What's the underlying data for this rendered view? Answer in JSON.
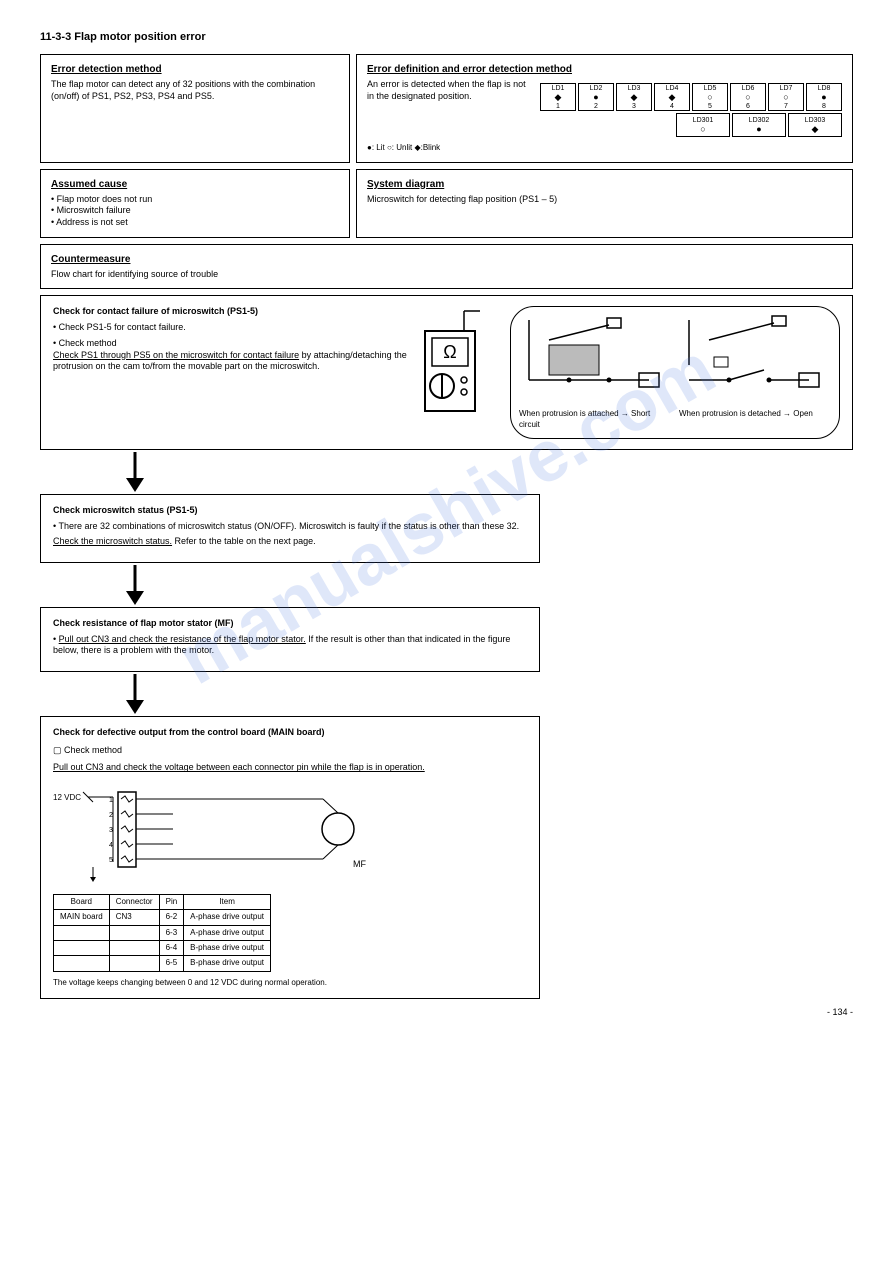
{
  "title": "11-3-3 Flap motor position error",
  "box1": {
    "heading": "Error detection method",
    "text": "The flap motor can detect any of 32 positions with the combination (on/off) of PS1, PS2, PS3, PS4 and PS5."
  },
  "box2": {
    "heading": "Error definition and error detection method",
    "text": "An error is detected when the flap is not in the designated position.",
    "led": {
      "cols": [
        "LD1",
        "LD2",
        "LD3",
        "LD4",
        "LD5",
        "LD6",
        "LD7",
        "LD8"
      ],
      "row1": [
        {
          "sym": "◆",
          "label": "1"
        },
        {
          "sym": "●",
          "label": "2"
        },
        {
          "sym": "◆",
          "label": "3"
        },
        {
          "sym": "◆",
          "label": "4"
        },
        {
          "sym": "○",
          "label": "5"
        },
        {
          "sym": "○",
          "label": "6"
        },
        {
          "sym": "○",
          "label": "7"
        },
        {
          "sym": "●",
          "label": "8"
        }
      ],
      "row2cols": [
        "LD301",
        "LD302",
        "LD303"
      ],
      "row2": [
        {
          "sym": "○"
        },
        {
          "sym": "●"
        },
        {
          "sym": "◆"
        }
      ]
    },
    "legend": "●: Lit  ○: Unlit  ◆:Blink"
  },
  "box3": {
    "heading": "Assumed cause",
    "items": [
      "• Flap motor does not run",
      "• Microswitch failure",
      "• Address is not set"
    ]
  },
  "box4": {
    "heading": "System diagram",
    "text": "Microswitch for detecting flap position (PS1 – 5)"
  },
  "box5": {
    "heading": "Countermeasure",
    "text": "Flow chart for identifying source of trouble"
  },
  "flow1": {
    "title": "Check for contact failure of microswitch (PS1-5)",
    "item1": "• Check PS1-5 for contact failure.",
    "item2title": "• Check method",
    "item2text_u": "Check PS1 through PS5 on the microswitch for contact failure",
    "item2text_rest": " by attaching/detaching the protrusion on the cam to/from the movable part on the microswitch.",
    "diag_left": "When protrusion is attached → Short circuit",
    "diag_right": "When protrusion is detached → Open"
  },
  "flow2": {
    "title": "Check microswitch status (PS1-5)",
    "item1": "• There are 32 combinations of microswitch status (ON/OFF). Microswitch is faulty if the status is other than these 32.",
    "item_u": "Check the microswitch status.",
    "item_rest": " Refer to the table on the next page."
  },
  "flow3": {
    "title": "Check resistance of flap motor stator (MF)",
    "item_u": "Pull out CN3 and check the resistance of the flap motor stator.",
    "item_rest": " If the result is other than that indicated in the figure below, there is a problem with the motor."
  },
  "flow4": {
    "title": "Check for defective output from the control board (MAIN board)",
    "sq": "Check method",
    "item_u": "Pull out CN3 and check the voltage between each connector pin while the flap is in operation.",
    "circuit_labels": {
      "top": "12 VDC",
      "pins": [
        "1",
        "2",
        "3",
        "4",
        "5"
      ],
      "motor": "MF"
    },
    "table": {
      "headers": [
        "Board",
        "Connector",
        "Pin",
        "Item"
      ],
      "rows": [
        [
          "MAIN board",
          "CN3",
          "6-2",
          "A-phase drive output"
        ],
        [
          "",
          "",
          "6-3",
          "A-phase drive output"
        ],
        [
          "",
          "",
          "6-4",
          "B-phase drive output"
        ],
        [
          "",
          "",
          "6-5",
          "B-phase drive output"
        ]
      ]
    },
    "note": "The voltage keeps changing between 0 and 12 VDC during normal operation."
  },
  "page": "- 134 -"
}
